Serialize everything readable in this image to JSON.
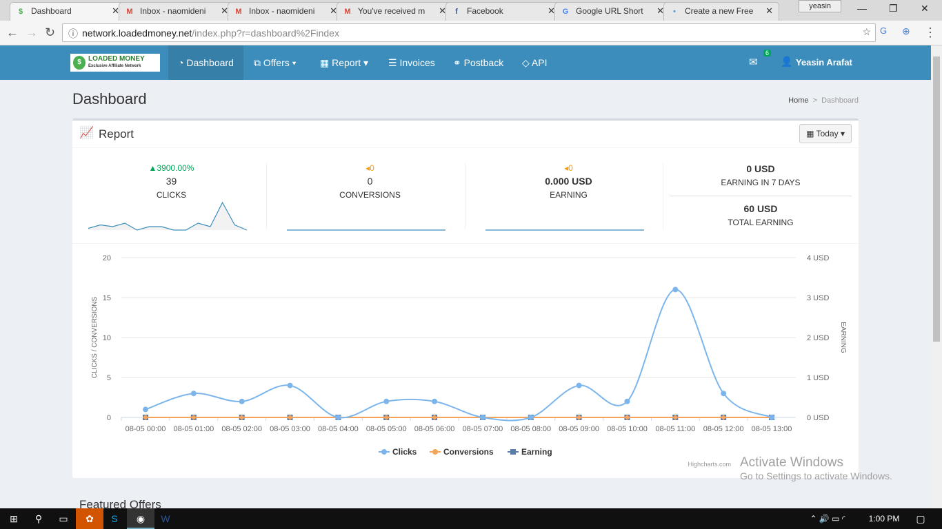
{
  "browser": {
    "tabs": [
      {
        "title": "Dashboard",
        "icon": "loadedmoney-icon",
        "active": true
      },
      {
        "title": "Inbox - naomideni",
        "icon": "gmail-icon"
      },
      {
        "title": "Inbox - naomideni",
        "icon": "gmail-icon"
      },
      {
        "title": "You've received m",
        "icon": "gmail-icon"
      },
      {
        "title": "Facebook",
        "icon": "facebook-icon"
      },
      {
        "title": "Google URL Short",
        "icon": "google-icon"
      },
      {
        "title": "Create a new Free",
        "icon": "site-icon"
      }
    ],
    "user": "yeasin",
    "url_host": "network.loadedmoney.net",
    "url_path": "/index.php?r=dashboard%2Findex"
  },
  "navbar": {
    "logo": "LOADED MONEY",
    "logo_sub": "Exclusive Affiliate Network",
    "items": [
      {
        "label": "Dashboard",
        "active": true
      },
      {
        "label": "Offers ▾"
      },
      {
        "label": "Report ▾"
      },
      {
        "label": "Invoices"
      },
      {
        "label": "Postback"
      },
      {
        "label": "API"
      }
    ],
    "mail_badge": "6",
    "user": "Yeasin Arafat",
    "color": "#3c8dbc"
  },
  "page": {
    "title": "Dashboard",
    "breadcrumb": [
      "Home",
      "Dashboard"
    ],
    "featured": "Featured Offers"
  },
  "report": {
    "title": "Report",
    "range": "Today",
    "stats": [
      {
        "change": "▲3900.00%",
        "value": "39",
        "label": "CLICKS",
        "change_color": "#00a65a"
      },
      {
        "change": "◂0",
        "value": "0",
        "label": "CONVERSIONS",
        "change_color": "#f39c12"
      },
      {
        "change": "◂0",
        "value": "0.000 USD",
        "label": "EARNING",
        "change_color": "#f39c12"
      }
    ],
    "earning7": {
      "value": "0 USD",
      "label": "EARNING IN 7 DAYS"
    },
    "total": {
      "value": "60 USD",
      "label": "TOTAL EARNING"
    }
  },
  "chart_data": {
    "type": "line",
    "categories": [
      "08-05 00:00",
      "08-05 01:00",
      "08-05 02:00",
      "08-05 03:00",
      "08-05 04:00",
      "08-05 05:00",
      "08-05 06:00",
      "08-05 07:00",
      "08-05 08:00",
      "08-05 09:00",
      "08-05 10:00",
      "08-05 11:00",
      "08-05 12:00",
      "08-05 13:00"
    ],
    "series": [
      {
        "name": "Clicks",
        "axis": "left",
        "color": "#7cb5ec",
        "values": [
          1,
          3,
          2,
          4,
          0,
          2,
          2,
          0,
          0,
          4,
          2,
          16,
          3,
          0
        ]
      },
      {
        "name": "Conversions",
        "axis": "left",
        "color": "#f7a35c",
        "values": [
          0,
          0,
          0,
          0,
          0,
          0,
          0,
          0,
          0,
          0,
          0,
          0,
          0,
          0
        ]
      },
      {
        "name": "Earning",
        "axis": "right",
        "color": "#5b7ea8",
        "values": [
          0,
          0,
          0,
          0,
          0,
          0,
          0,
          0,
          0,
          0,
          0,
          0,
          0,
          0
        ]
      }
    ],
    "ylabel": "CLICKS / CONVERSIONS",
    "y2label": "EARNING",
    "ylim": [
      0,
      20
    ],
    "y2lim": [
      0,
      4
    ],
    "yticks": [
      "0",
      "5",
      "10",
      "15",
      "20"
    ],
    "y2ticks": [
      "0 USD",
      "1 USD",
      "2 USD",
      "3 USD",
      "4 USD"
    ],
    "credit": "Highcharts.com",
    "grid": true,
    "legend": "bottom"
  },
  "taskbar": {
    "time": "1:00 PM"
  },
  "watermark": {
    "line1": "Activate Windows",
    "line2": "Go to Settings to activate Windows."
  }
}
